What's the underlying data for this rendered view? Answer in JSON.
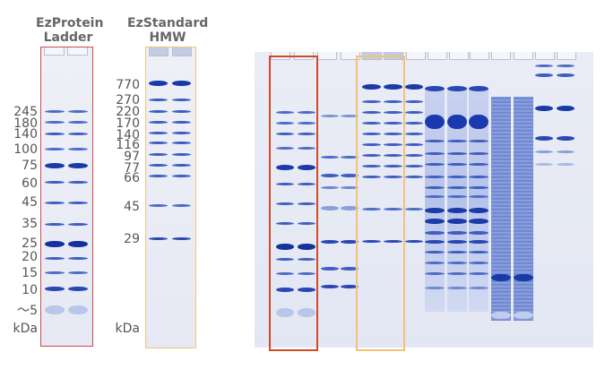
{
  "ladder_titles": {
    "ezprotein": [
      "EzProtein",
      "Ladder"
    ],
    "ezstandard": [
      "EzStandard",
      "HMW"
    ]
  },
  "ezprotein_ladder": {
    "markers": [
      "245",
      "180",
      "140",
      "100",
      "75",
      "60",
      "45",
      "35",
      "25",
      "20",
      "15",
      "10",
      "～5"
    ],
    "unit": "kDa",
    "frame_color": "#d24a4a"
  },
  "ezstandard_hmw": {
    "markers": [
      "770",
      "270",
      "220",
      "170",
      "140",
      "116",
      "97",
      "77",
      "66",
      "45",
      "29"
    ],
    "unit": "kDa",
    "frame_color": "#f0c47a"
  },
  "colors": {
    "band_dark": "#1a3aa8",
    "band_mid": "#4d6cc7",
    "band_light": "#9aaedf",
    "gel_bg": "#e9ecf5",
    "highlight_red": "#d04a2a",
    "highlight_orange": "#f5c275"
  }
}
